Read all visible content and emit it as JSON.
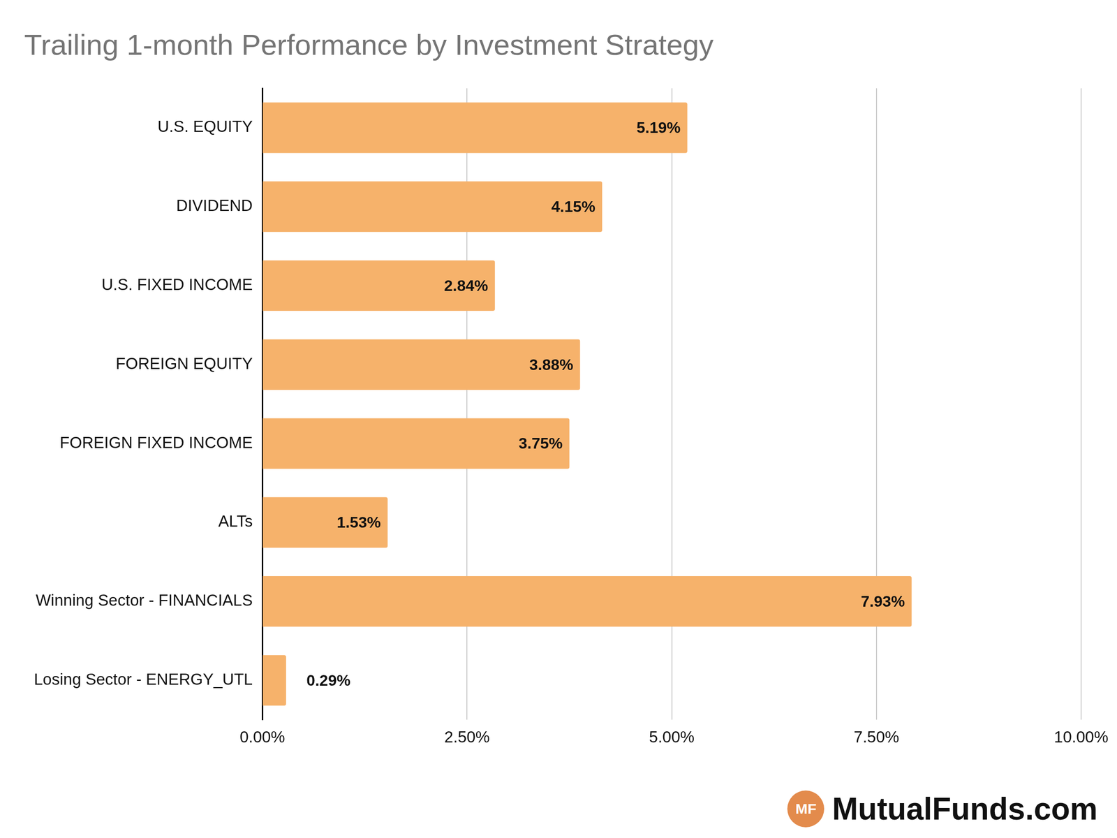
{
  "chart_data": {
    "type": "bar",
    "orientation": "horizontal",
    "title": "Trailing 1-month Performance by Investment Strategy",
    "categories": [
      "U.S. EQUITY",
      "DIVIDEND",
      "U.S. FIXED INCOME",
      "FOREIGN EQUITY",
      "FOREIGN FIXED INCOME",
      "ALTs",
      "Winning Sector - FINANCIALS",
      "Losing Sector - ENERGY_UTL"
    ],
    "values": [
      5.19,
      4.15,
      2.84,
      3.88,
      3.75,
      1.53,
      7.93,
      0.29
    ],
    "value_labels": [
      "5.19%",
      "4.15%",
      "2.84%",
      "3.88%",
      "3.75%",
      "1.53%",
      "7.93%",
      "0.29%"
    ],
    "data_labels": true,
    "color": "#f6b26b",
    "xlim": [
      0,
      10
    ],
    "xticks": [
      {
        "value": 0,
        "label": "0.00%"
      },
      {
        "value": 2.5,
        "label": "2.50%"
      },
      {
        "value": 5,
        "label": "5.00%"
      },
      {
        "value": 7.5,
        "label": "7.50%"
      },
      {
        "value": 10,
        "label": "10.00%"
      }
    ],
    "grid": true,
    "annotations": [
      "MF",
      "MutualFunds.com"
    ]
  }
}
